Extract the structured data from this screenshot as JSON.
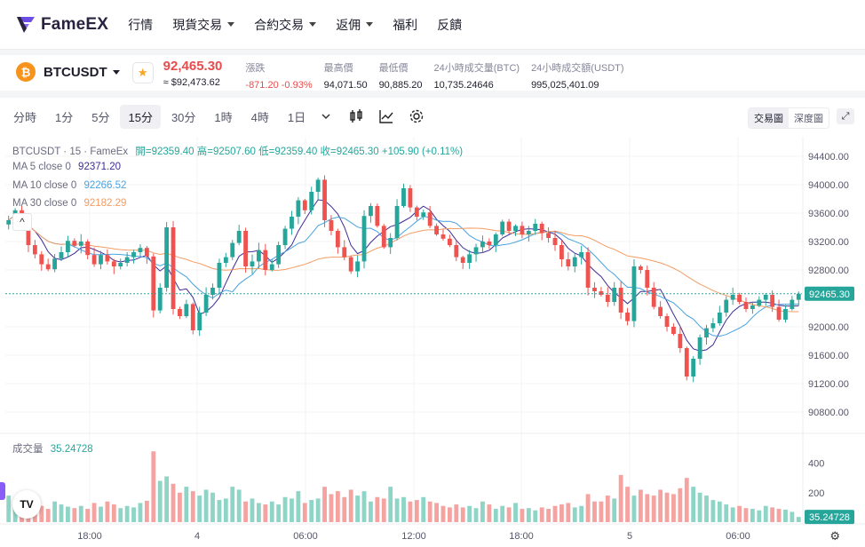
{
  "brand": {
    "name": "FameEX"
  },
  "nav": {
    "items": [
      "行情",
      "現貨交易",
      "合約交易",
      "返佣",
      "福利",
      "反饋"
    ],
    "has_dropdown": [
      false,
      true,
      true,
      true,
      false,
      false
    ]
  },
  "ticker": {
    "coin_icon": "bitcoin-icon",
    "pair": "BTCUSDT",
    "price": "92,465.30",
    "price_fiat": "≈ $92,473.62",
    "stats": [
      {
        "label": "漲跌",
        "value": "-871.20 -0.93%",
        "negative": true
      },
      {
        "label": "最高價",
        "value": "94,071.50"
      },
      {
        "label": "最低價",
        "value": "90,885.20"
      },
      {
        "label": "24小時成交量(BTC)",
        "value": "10,735.24646"
      },
      {
        "label": "24小時成交額(USDT)",
        "value": "995,025,401.09"
      }
    ]
  },
  "toolbar": {
    "timeframes": [
      "分時",
      "1分",
      "5分",
      "15分",
      "30分",
      "1時",
      "4時",
      "1日"
    ],
    "active_timeframe": "15分",
    "view_modes": [
      "交易圖",
      "深度圖"
    ],
    "active_view": "交易圖"
  },
  "legend": {
    "title": "BTCUSDT · 15 · FameEx",
    "ohlc": "開=92359.40 高=92507.60 低=92359.40 收=92465.30 +105.90 (+0.11%)",
    "ma5_label": "MA 5 close 0",
    "ma5_value": "92371.20",
    "ma10_label": "MA 10 close 0",
    "ma10_value": "92266.52",
    "ma30_label": "MA 30 close 0",
    "ma30_value": "92182.29",
    "volume_label": "成交量",
    "volume_value": "35.24728"
  },
  "colors": {
    "up": "#26a69a",
    "down": "#ef5350",
    "ma5": "#3f2b96",
    "ma10": "#4aa3df",
    "ma30": "#f49b62",
    "accent": "#e84c4c"
  },
  "chart_data": {
    "type": "candlestick",
    "price_axis_ticks": [
      94400,
      94000,
      93600,
      93200,
      92800,
      92000,
      91600,
      91200,
      90800
    ],
    "price_ylim": [
      90600,
      94600
    ],
    "current_price_label": "92465.30",
    "volume_axis_ticks": [
      400,
      200
    ],
    "volume_ylim": [
      0,
      560
    ],
    "current_volume_label": "35.24728",
    "time_ticks": [
      "18:00",
      "4",
      "06:00",
      "12:00",
      "18:00",
      "5",
      "06:00"
    ],
    "close_series": [
      93500,
      93640,
      93420,
      93150,
      93020,
      92880,
      92810,
      92960,
      93050,
      93210,
      93140,
      93200,
      93010,
      92880,
      93010,
      92920,
      92850,
      92900,
      92980,
      93050,
      93110,
      92990,
      92230,
      92550,
      93400,
      92250,
      92150,
      92320,
      91950,
      92200,
      92450,
      92550,
      92900,
      92980,
      93180,
      93350,
      92850,
      92920,
      93080,
      92800,
      92880,
      93150,
      93380,
      93550,
      93780,
      93640,
      93900,
      94070,
      93500,
      93350,
      93120,
      92980,
      92780,
      92920,
      93560,
      93700,
      93420,
      93120,
      93250,
      93700,
      93950,
      93680,
      93550,
      93610,
      93420,
      93300,
      93240,
      93150,
      92980,
      92900,
      93020,
      93120,
      93200,
      93150,
      93300,
      93480,
      93350,
      93420,
      93300,
      93350,
      93450,
      93320,
      93250,
      93150,
      92950,
      92850,
      92980,
      93050,
      92550,
      92500,
      92450,
      92350,
      92550,
      92200,
      92080,
      92850,
      92800,
      92550,
      92280,
      92150,
      92000,
      91900,
      91700,
      91300,
      91550,
      91850,
      91980,
      92050,
      92200,
      92380,
      92450,
      92350,
      92250,
      92300,
      92380,
      92450,
      92280,
      92100,
      92250,
      92380,
      92465.3
    ],
    "volume_series": [
      180,
      120,
      110,
      95,
      130,
      110,
      90,
      140,
      120,
      105,
      95,
      110,
      90,
      130,
      105,
      140,
      120,
      95,
      110,
      100,
      130,
      145,
      480,
      280,
      310,
      260,
      200,
      240,
      210,
      180,
      220,
      200,
      150,
      160,
      240,
      220,
      140,
      160,
      130,
      120,
      140,
      120,
      170,
      160,
      210,
      130,
      150,
      160,
      240,
      190,
      210,
      170,
      220,
      180,
      210,
      140,
      170,
      160,
      240,
      160,
      170,
      140,
      150,
      170,
      140,
      130,
      110,
      100,
      120,
      100,
      110,
      95,
      140,
      120,
      90,
      110,
      100,
      130,
      90,
      95,
      80,
      100,
      90,
      110,
      120,
      130,
      100,
      110,
      190,
      140,
      140,
      180,
      160,
      320,
      240,
      180,
      220,
      190,
      180,
      220,
      200,
      190,
      230,
      300,
      240,
      200,
      180,
      150,
      140,
      120,
      100,
      110,
      95,
      90,
      80,
      110,
      100,
      90,
      85,
      70,
      35.24728
    ]
  }
}
